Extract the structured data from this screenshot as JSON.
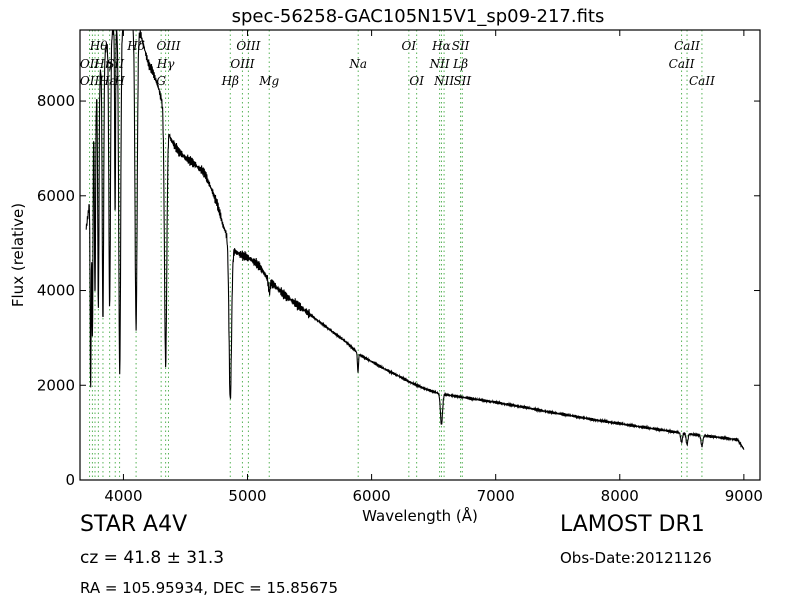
{
  "chart_data": {
    "type": "line",
    "title": "spec-56258-GAC105N15V1_sp09-217.fits",
    "xlabel": "Wavelength (Å)",
    "ylabel": "Flux (relative)",
    "xlim": [
      3650,
      9130
    ],
    "ylim": [
      0,
      9500
    ],
    "xticks": [
      4000,
      5000,
      6000,
      7000,
      8000,
      9000
    ],
    "yticks": [
      0,
      2000,
      4000,
      6000,
      8000
    ],
    "grid": false,
    "legend": "none",
    "line_color": "#000000",
    "marker_color": "#2ca02c",
    "continuum": [
      [
        3700,
        5300
      ],
      [
        3720,
        5700
      ],
      [
        3760,
        7600
      ],
      [
        3800,
        8500
      ],
      [
        3840,
        8900
      ],
      [
        3880,
        9300
      ],
      [
        3920,
        9500
      ],
      [
        3980,
        9600
      ],
      [
        4050,
        9700
      ],
      [
        4140,
        9400
      ],
      [
        4200,
        8800
      ],
      [
        4240,
        8600
      ],
      [
        4280,
        8300
      ],
      [
        4320,
        7900
      ],
      [
        4380,
        7200
      ],
      [
        4440,
        6950
      ],
      [
        4500,
        6800
      ],
      [
        4560,
        6700
      ],
      [
        4600,
        6600
      ],
      [
        4650,
        6500
      ],
      [
        4700,
        6200
      ],
      [
        4760,
        5800
      ],
      [
        4800,
        5400
      ],
      [
        4880,
        4850
      ],
      [
        4950,
        4750
      ],
      [
        5000,
        4700
      ],
      [
        5060,
        4600
      ],
      [
        5100,
        4500
      ],
      [
        5150,
        4300
      ],
      [
        5200,
        4150
      ],
      [
        5300,
        3900
      ],
      [
        5400,
        3700
      ],
      [
        5500,
        3500
      ],
      [
        5600,
        3300
      ],
      [
        5700,
        3100
      ],
      [
        5800,
        2900
      ],
      [
        5900,
        2650
      ],
      [
        6000,
        2500
      ],
      [
        6100,
        2350
      ],
      [
        6200,
        2220
      ],
      [
        6300,
        2080
      ],
      [
        6400,
        1960
      ],
      [
        6500,
        1860
      ],
      [
        6540,
        1830
      ],
      [
        6600,
        1800
      ],
      [
        6700,
        1760
      ],
      [
        6800,
        1720
      ],
      [
        6900,
        1680
      ],
      [
        7000,
        1640
      ],
      [
        7200,
        1550
      ],
      [
        7400,
        1450
      ],
      [
        7600,
        1360
      ],
      [
        7800,
        1270
      ],
      [
        8000,
        1190
      ],
      [
        8200,
        1110
      ],
      [
        8400,
        1030
      ],
      [
        8600,
        960
      ],
      [
        8800,
        900
      ],
      [
        8950,
        850
      ],
      [
        9000,
        650
      ]
    ],
    "absorption_lines": [
      {
        "x": 3736,
        "depth": 4500,
        "width": 6
      },
      {
        "x": 3750,
        "depth": 4100,
        "width": 6
      },
      {
        "x": 3771,
        "depth": 4000,
        "width": 6
      },
      {
        "x": 3798,
        "depth": 4800,
        "width": 7
      },
      {
        "x": 3835,
        "depth": 5500,
        "width": 8
      },
      {
        "x": 3889,
        "depth": 5700,
        "width": 9
      },
      {
        "x": 3933,
        "depth": 4000,
        "width": 5
      },
      {
        "x": 3970,
        "depth": 7300,
        "width": 11
      },
      {
        "x": 4102,
        "depth": 6300,
        "width": 12
      },
      {
        "x": 4340,
        "depth": 5200,
        "width": 13
      },
      {
        "x": 4861,
        "depth": 3300,
        "width": 14
      },
      {
        "x": 5175,
        "depth": 250,
        "width": 10
      },
      {
        "x": 5890,
        "depth": 400,
        "width": 6
      },
      {
        "x": 6563,
        "depth": 650,
        "width": 12
      },
      {
        "x": 8498,
        "depth": 200,
        "width": 10
      },
      {
        "x": 8542,
        "depth": 230,
        "width": 10
      },
      {
        "x": 8662,
        "depth": 230,
        "width": 10
      }
    ],
    "line_markers": [
      3727,
      3750,
      3771,
      3798,
      3835,
      3889,
      3934,
      3969,
      4102,
      4304,
      4340,
      4363,
      4861,
      4959,
      5007,
      5175,
      5892,
      6300,
      6363,
      6548,
      6563,
      6584,
      6717,
      6731,
      8498,
      8542,
      8662
    ],
    "annotations": [
      {
        "text": "Hθ",
        "x": 3800,
        "row": 1
      },
      {
        "text": "OII",
        "x": 3727,
        "row": 2
      },
      {
        "text": "Hη",
        "x": 3835,
        "row": 2
      },
      {
        "text": "SII",
        "x": 3934,
        "row": 2
      },
      {
        "text": "OII",
        "x": 3727,
        "row": 3
      },
      {
        "text": "Hε",
        "x": 3870,
        "row": 3
      },
      {
        "text": "H",
        "x": 3969,
        "row": 3
      },
      {
        "text": "Hδ",
        "x": 4102,
        "row": 1
      },
      {
        "text": "OIII",
        "x": 4363,
        "row": 1
      },
      {
        "text": "Hγ",
        "x": 4340,
        "row": 2
      },
      {
        "text": "G",
        "x": 4304,
        "row": 3
      },
      {
        "text": "OIII",
        "x": 5007,
        "row": 1
      },
      {
        "text": "OIII",
        "x": 4959,
        "row": 2
      },
      {
        "text": "Hβ",
        "x": 4861,
        "row": 3
      },
      {
        "text": "Mg",
        "x": 5175,
        "row": 3
      },
      {
        "text": "Na",
        "x": 5892,
        "row": 2
      },
      {
        "text": "OI",
        "x": 6300,
        "row": 1
      },
      {
        "text": "OI",
        "x": 6363,
        "row": 3
      },
      {
        "text": "Hα",
        "x": 6563,
        "row": 1
      },
      {
        "text": "SII",
        "x": 6717,
        "row": 1
      },
      {
        "text": "NII",
        "x": 6548,
        "row": 2
      },
      {
        "text": "Lβ",
        "x": 6717,
        "row": 2
      },
      {
        "text": "NII",
        "x": 6584,
        "row": 3
      },
      {
        "text": "SII",
        "x": 6731,
        "row": 3
      },
      {
        "text": "CaII",
        "x": 8542,
        "row": 1
      },
      {
        "text": "CaII",
        "x": 8498,
        "row": 2
      },
      {
        "text": "CaII",
        "x": 8662,
        "row": 3
      }
    ]
  },
  "info": {
    "class": "STAR   A4V",
    "cz": "cz = 41.8 ± 31.3",
    "radec": "RA = 105.95934, DEC = 15.85675",
    "survey": "LAMOST DR1",
    "obs_date": "Obs-Date:20121126"
  }
}
